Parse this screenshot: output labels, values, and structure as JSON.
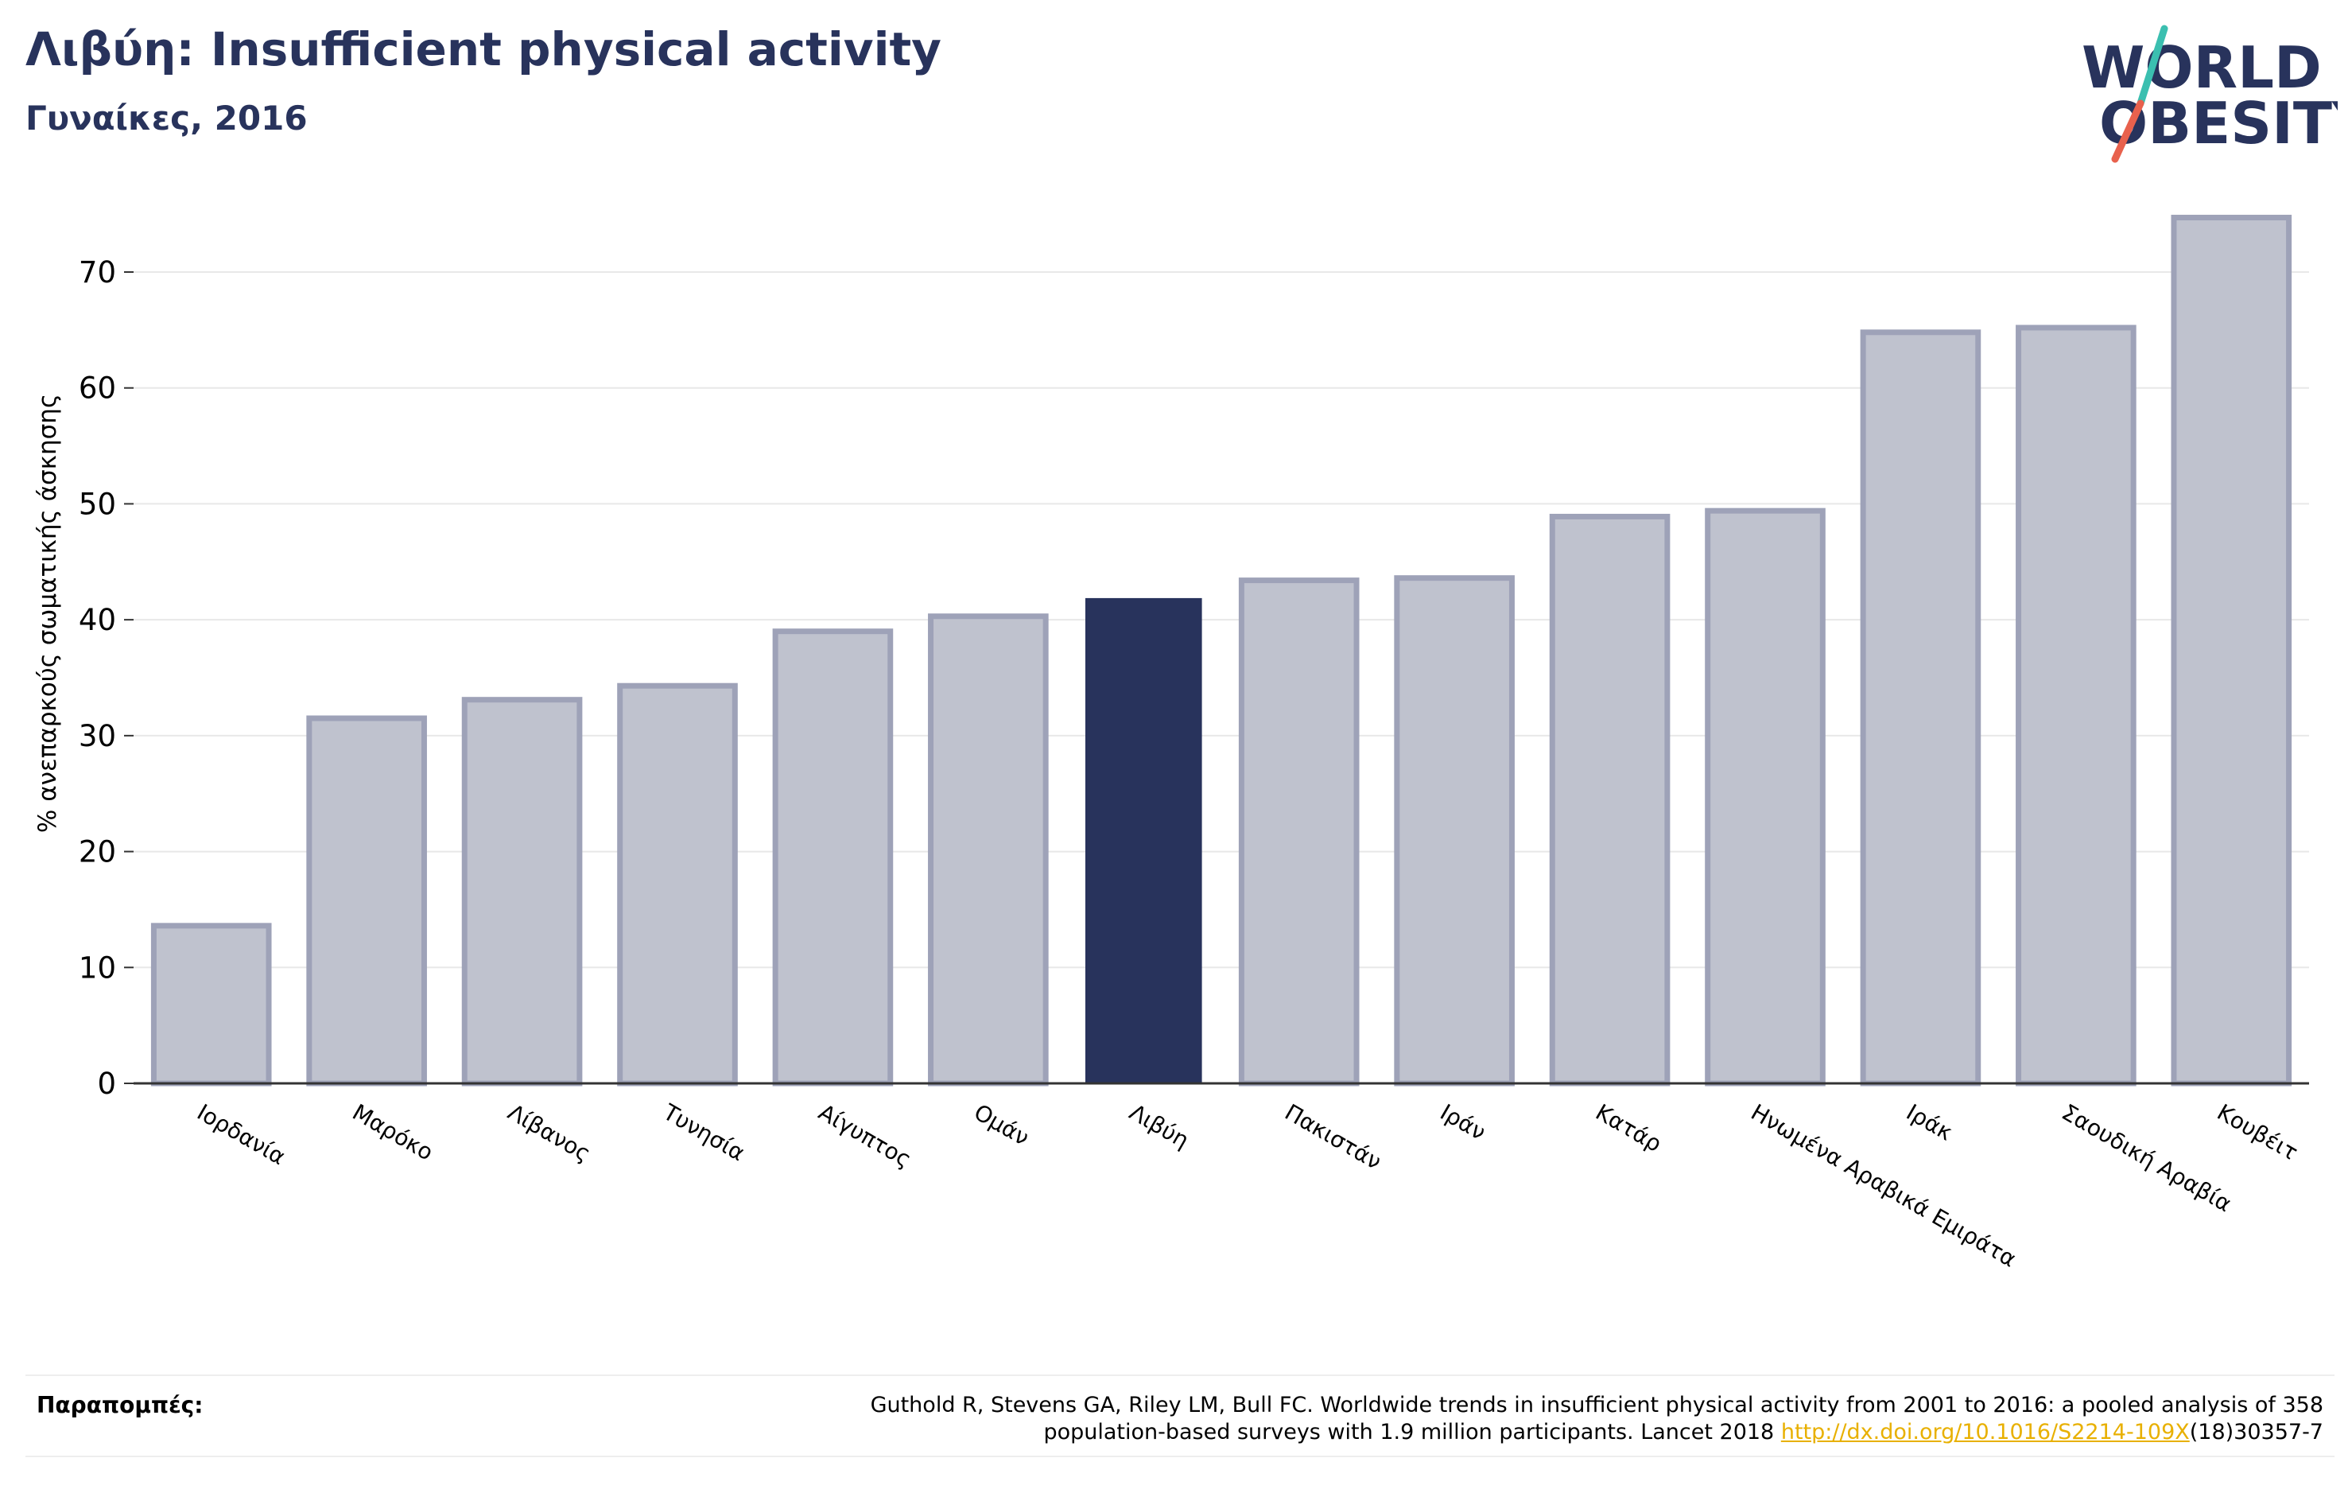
{
  "header": {
    "title": "Λιβύη: Insufficient physical activity",
    "subtitle": "Γυναίκες, 2016"
  },
  "logo": {
    "line1": "WORLD",
    "line2": "OBESITY",
    "slash_colors": [
      "#3bbfb0",
      "#e8614d"
    ],
    "text_color": "#28335c"
  },
  "chart_data": {
    "type": "bar",
    "title": "",
    "xlabel": "",
    "ylabel": "% ανεπαρκούς σωματικής άσκησης",
    "ylim": [
      0,
      77
    ],
    "yticks": [
      0,
      10,
      20,
      30,
      40,
      50,
      60,
      70
    ],
    "grid": true,
    "highlight": "Λιβύη",
    "colors": {
      "bar": "#bfc2ce",
      "bar_edge": "#9ea2b8",
      "highlight": "#28335c",
      "grid": "#e8e8e8",
      "axis": "#333333"
    },
    "categories": [
      "Ιορδανία",
      "Μαρόκο",
      "Λίβανος",
      "Τυνησία",
      "Αίγυπτος",
      "Ομάν",
      "Λιβύη",
      "Πακιστάν",
      "Ιράν",
      "Κατάρ",
      "Ηνωμένα Αραβικά Εμιράτα",
      "Ιράκ",
      "Σαουδική Αραβία",
      "Κουβέιτ"
    ],
    "values": [
      13.6,
      31.5,
      33.1,
      34.3,
      39.0,
      40.3,
      41.8,
      43.4,
      43.6,
      48.9,
      49.4,
      64.8,
      65.2,
      74.7
    ]
  },
  "references": {
    "label": "Παραπομπές:",
    "line1": "Guthold R, Stevens GA, Riley LM, Bull FC. Worldwide trends in insufficient physical activity from 2001 to 2016: a pooled analysis of 358",
    "line2_prefix": "population-based surveys with 1.9 million participants. Lancet 2018 ",
    "link_text": "http://dx.doi.org/10.1016/S2214-109X",
    "line2_suffix": "(18)30357-7"
  }
}
